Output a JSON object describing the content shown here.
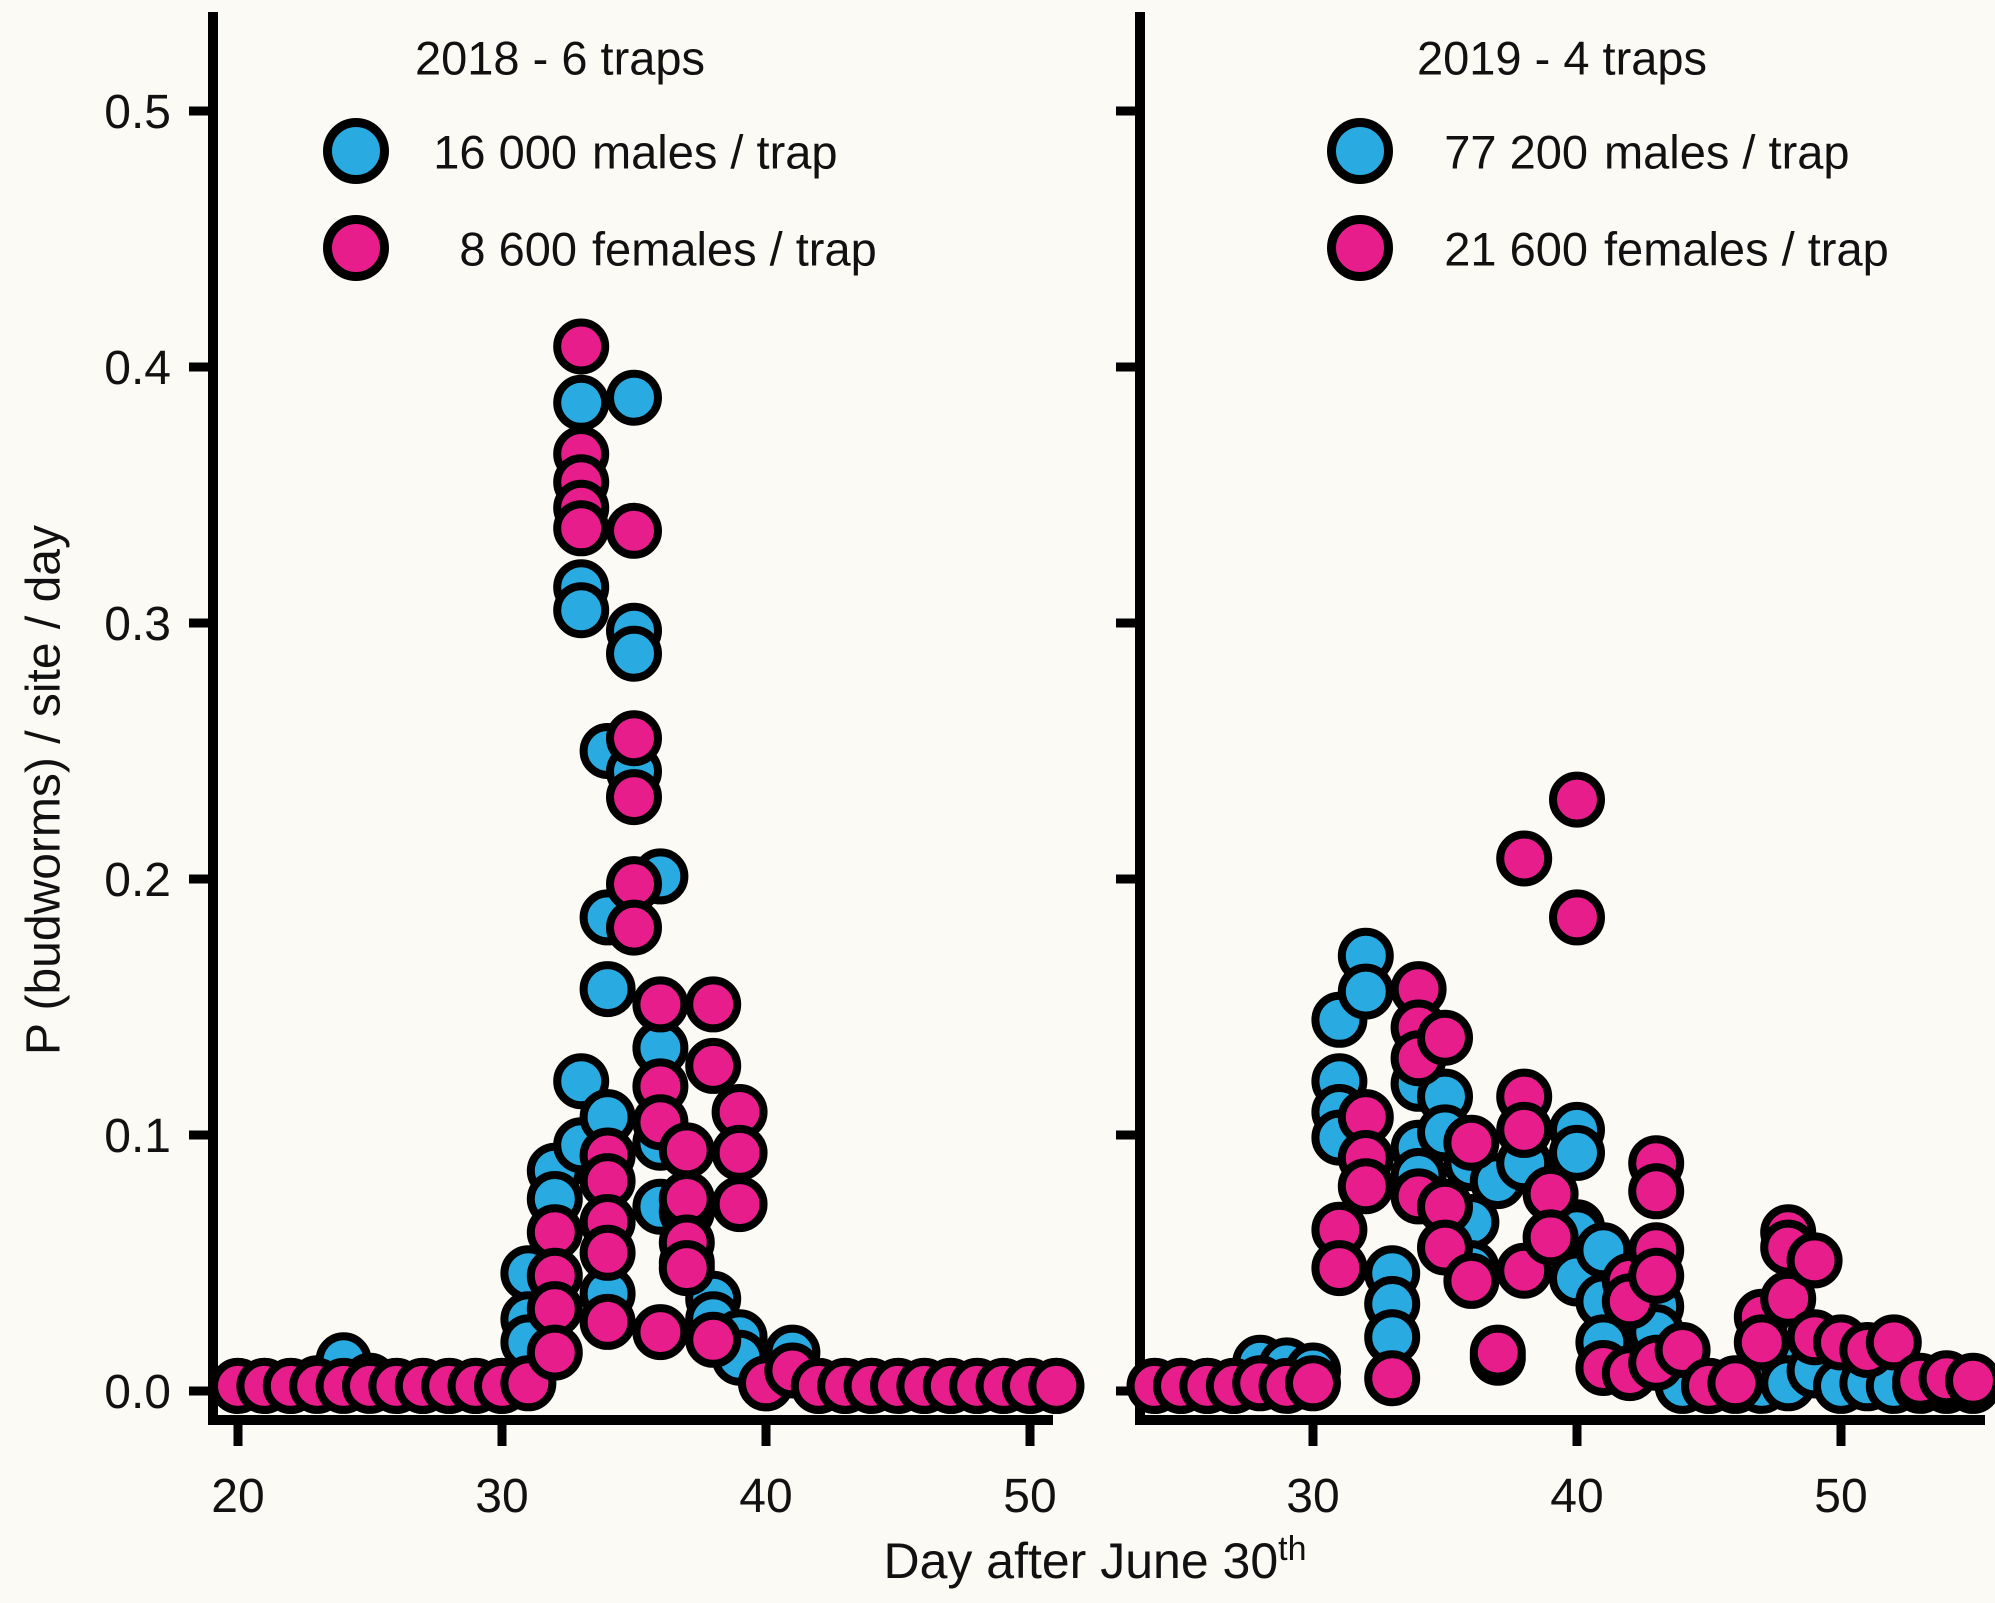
{
  "figure": {
    "background": "#fcfaf4",
    "y_axis_label": "P (budworms) / site / day",
    "x_axis_label_base": "Day after June 30",
    "x_axis_label_sup": "th"
  },
  "chart_data": [
    {
      "type": "scatter",
      "title": "2018 - 6 traps",
      "xlabel": "Day after June 30th",
      "ylabel": "P (budworms) / site / day",
      "xlim": [
        19.1,
        50.9
      ],
      "ylim": [
        -0.01,
        0.54
      ],
      "x_ticks": [
        20,
        30,
        40,
        50
      ],
      "y_ticks": [
        0,
        0.1,
        0.2,
        0.3,
        0.4,
        0.5
      ],
      "grid": false,
      "legend_position": "top-inside",
      "series": [
        {
          "key": "males",
          "name": "16 000 males / trap",
          "count_label": "16 000",
          "unit_label": "males / trap",
          "color": "#29abe2",
          "points": [
            [
              20,
              0.002
            ],
            [
              21,
              0.002
            ],
            [
              22,
              0.002
            ],
            [
              23,
              0.003
            ],
            [
              24,
              0.012
            ],
            [
              25,
              0.004
            ],
            [
              26,
              0.002
            ],
            [
              27,
              0.002
            ],
            [
              28,
              0.002
            ],
            [
              29,
              0.002
            ],
            [
              30,
              0.002
            ],
            [
              31,
              0.046
            ],
            [
              31,
              0.028
            ],
            [
              31,
              0.019
            ],
            [
              32,
              0.086
            ],
            [
              32,
              0.075
            ],
            [
              33,
              0.386
            ],
            [
              33,
              0.314
            ],
            [
              33,
              0.305
            ],
            [
              33,
              0.121
            ],
            [
              33,
              0.096
            ],
            [
              34,
              0.25
            ],
            [
              34,
              0.185
            ],
            [
              34,
              0.157
            ],
            [
              34,
              0.107
            ],
            [
              34,
              0.038
            ],
            [
              35,
              0.388
            ],
            [
              35,
              0.297
            ],
            [
              35,
              0.288
            ],
            [
              35,
              0.242
            ],
            [
              36,
              0.201
            ],
            [
              36,
              0.134
            ],
            [
              36,
              0.097
            ],
            [
              36,
              0.072
            ],
            [
              37,
              0.07
            ],
            [
              37,
              0.05
            ],
            [
              38,
              0.036
            ],
            [
              38,
              0.028
            ],
            [
              39,
              0.021
            ],
            [
              39,
              0.013
            ],
            [
              40,
              0.003
            ],
            [
              41,
              0.015
            ],
            [
              42,
              0.002
            ],
            [
              43,
              0.002
            ],
            [
              44,
              0.002
            ],
            [
              45,
              0.002
            ],
            [
              46,
              0.002
            ],
            [
              47,
              0.002
            ],
            [
              48,
              0.002
            ],
            [
              49,
              0.002
            ],
            [
              50,
              0.002
            ],
            [
              51,
              0.002
            ]
          ]
        },
        {
          "key": "females",
          "name": "8 600 females / trap",
          "count_label": "8 600",
          "unit_label": "females / trap",
          "color": "#e71d8c",
          "points": [
            [
              20,
              0.002
            ],
            [
              21,
              0.002
            ],
            [
              22,
              0.002
            ],
            [
              23,
              0.002
            ],
            [
              24,
              0.002
            ],
            [
              25,
              0.002
            ],
            [
              26,
              0.002
            ],
            [
              27,
              0.002
            ],
            [
              28,
              0.002
            ],
            [
              29,
              0.002
            ],
            [
              30,
              0.002
            ],
            [
              31,
              0.003
            ],
            [
              32,
              0.062
            ],
            [
              32,
              0.045
            ],
            [
              32,
              0.032
            ],
            [
              32,
              0.015
            ],
            [
              33,
              0.408
            ],
            [
              33,
              0.366
            ],
            [
              33,
              0.355
            ],
            [
              33,
              0.345
            ],
            [
              33,
              0.337
            ],
            [
              34,
              0.092
            ],
            [
              34,
              0.082
            ],
            [
              34,
              0.066
            ],
            [
              34,
              0.054
            ],
            [
              34,
              0.027
            ],
            [
              35,
              0.336
            ],
            [
              35,
              0.255
            ],
            [
              35,
              0.232
            ],
            [
              35,
              0.198
            ],
            [
              35,
              0.181
            ],
            [
              36,
              0.151
            ],
            [
              36,
              0.119
            ],
            [
              36,
              0.105
            ],
            [
              36,
              0.023
            ],
            [
              37,
              0.094
            ],
            [
              37,
              0.075
            ],
            [
              37,
              0.058
            ],
            [
              37,
              0.048
            ],
            [
              38,
              0.151
            ],
            [
              38,
              0.127
            ],
            [
              38,
              0.02
            ],
            [
              39,
              0.109
            ],
            [
              39,
              0.093
            ],
            [
              39,
              0.073
            ],
            [
              40,
              0.003
            ],
            [
              41,
              0.008
            ],
            [
              42,
              0.002
            ],
            [
              43,
              0.002
            ],
            [
              44,
              0.002
            ],
            [
              45,
              0.002
            ],
            [
              46,
              0.002
            ],
            [
              47,
              0.002
            ],
            [
              48,
              0.002
            ],
            [
              49,
              0.002
            ],
            [
              50,
              0.002
            ],
            [
              51,
              0.002
            ]
          ]
        }
      ]
    },
    {
      "type": "scatter",
      "title": "2019 - 4 traps",
      "xlabel": "Day after June 30th",
      "ylabel": "P (budworms) / site / day",
      "xlim": [
        23.4,
        55.5
      ],
      "ylim": [
        -0.01,
        0.54
      ],
      "x_ticks": [
        30,
        40,
        50
      ],
      "y_ticks": [
        0,
        0.1,
        0.2,
        0.3,
        0.4,
        0.5
      ],
      "grid": false,
      "legend_position": "top-inside",
      "series": [
        {
          "key": "males",
          "name": "77 200 males / trap",
          "count_label": "77 200",
          "unit_label": "males / trap",
          "color": "#29abe2",
          "points": [
            [
              24,
              0.002
            ],
            [
              25,
              0.002
            ],
            [
              26,
              0.002
            ],
            [
              27,
              0.002
            ],
            [
              28,
              0.011
            ],
            [
              29,
              0.01
            ],
            [
              30,
              0.008
            ],
            [
              31,
              0.145
            ],
            [
              31,
              0.121
            ],
            [
              31,
              0.109
            ],
            [
              31,
              0.099
            ],
            [
              32,
              0.17
            ],
            [
              32,
              0.156
            ],
            [
              33,
              0.046
            ],
            [
              33,
              0.034
            ],
            [
              33,
              0.021
            ],
            [
              34,
              0.12
            ],
            [
              34,
              0.095
            ],
            [
              34,
              0.084
            ],
            [
              35,
              0.115
            ],
            [
              35,
              0.101
            ],
            [
              36,
              0.089
            ],
            [
              36,
              0.066
            ],
            [
              36,
              0.048
            ],
            [
              37,
              0.082
            ],
            [
              37,
              0.013
            ],
            [
              38,
              0.089
            ],
            [
              40,
              0.102
            ],
            [
              40,
              0.093
            ],
            [
              40,
              0.064
            ],
            [
              40,
              0.062
            ],
            [
              40,
              0.044
            ],
            [
              41,
              0.055
            ],
            [
              41,
              0.035
            ],
            [
              41,
              0.019
            ],
            [
              43,
              0.033
            ],
            [
              43,
              0.023
            ],
            [
              44,
              0.002
            ],
            [
              45,
              0.002
            ],
            [
              46,
              0.002
            ],
            [
              47,
              0.002
            ],
            [
              48,
              0.011
            ],
            [
              48,
              0.003
            ],
            [
              49,
              0.008
            ],
            [
              50,
              0.002
            ],
            [
              51,
              0.003
            ],
            [
              52,
              0.002
            ],
            [
              53,
              0.002
            ],
            [
              54,
              0.002
            ],
            [
              55,
              0.002
            ]
          ]
        },
        {
          "key": "females",
          "name": "21 600 females / trap",
          "count_label": "21 600",
          "unit_label": "females / trap",
          "color": "#e71d8c",
          "points": [
            [
              24,
              0.002
            ],
            [
              25,
              0.002
            ],
            [
              26,
              0.002
            ],
            [
              27,
              0.002
            ],
            [
              28,
              0.003
            ],
            [
              29,
              0.002
            ],
            [
              30,
              0.003
            ],
            [
              31,
              0.063
            ],
            [
              31,
              0.048
            ],
            [
              32,
              0.107
            ],
            [
              32,
              0.091
            ],
            [
              32,
              0.08
            ],
            [
              33,
              0.005
            ],
            [
              34,
              0.157
            ],
            [
              34,
              0.142
            ],
            [
              34,
              0.13
            ],
            [
              34,
              0.076
            ],
            [
              35,
              0.138
            ],
            [
              35,
              0.072
            ],
            [
              35,
              0.056
            ],
            [
              36,
              0.097
            ],
            [
              36,
              0.043
            ],
            [
              37,
              0.015
            ],
            [
              38,
              0.208
            ],
            [
              38,
              0.115
            ],
            [
              38,
              0.102
            ],
            [
              38,
              0.047
            ],
            [
              39,
              0.077
            ],
            [
              39,
              0.06
            ],
            [
              40,
              0.231
            ],
            [
              40,
              0.185
            ],
            [
              41,
              0.009
            ],
            [
              42,
              0.043
            ],
            [
              42,
              0.035
            ],
            [
              42,
              0.007
            ],
            [
              43,
              0.089
            ],
            [
              43,
              0.078
            ],
            [
              43,
              0.055
            ],
            [
              43,
              0.045
            ],
            [
              43,
              0.011
            ],
            [
              44,
              0.016
            ],
            [
              45,
              0.002
            ],
            [
              46,
              0.003
            ],
            [
              47,
              0.029
            ],
            [
              47,
              0.019
            ],
            [
              48,
              0.062
            ],
            [
              48,
              0.056
            ],
            [
              48,
              0.036
            ],
            [
              49,
              0.051
            ],
            [
              49,
              0.021
            ],
            [
              50,
              0.019
            ],
            [
              51,
              0.016
            ],
            [
              52,
              0.019
            ],
            [
              53,
              0.004
            ],
            [
              54,
              0.005
            ],
            [
              55,
              0.004
            ]
          ]
        }
      ]
    }
  ]
}
